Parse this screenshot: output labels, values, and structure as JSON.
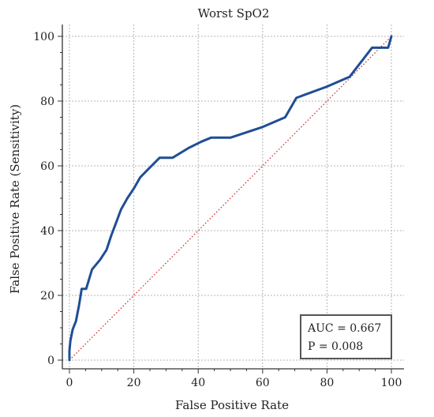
{
  "chart_data": {
    "type": "line",
    "title": "Worst SpO2",
    "xlabel": "False Positive Rate",
    "ylabel": "False Positive Rate (Sensitivity)",
    "xlim": [
      0,
      100
    ],
    "ylim": [
      0,
      100
    ],
    "xticks": [
      0,
      20,
      40,
      60,
      80,
      100
    ],
    "yticks": [
      0,
      20,
      40,
      60,
      80,
      100
    ],
    "grid": true,
    "series": [
      {
        "role": "roc-curve",
        "color": "#1f4e96",
        "points": [
          [
            0,
            0
          ],
          [
            0,
            3
          ],
          [
            0.3,
            6
          ],
          [
            1,
            9.5
          ],
          [
            2,
            12
          ],
          [
            3,
            17
          ],
          [
            3.8,
            22
          ],
          [
            5.2,
            22
          ],
          [
            7,
            28
          ],
          [
            9.5,
            31
          ],
          [
            11.5,
            34
          ],
          [
            13,
            38.5
          ],
          [
            14.5,
            42.5
          ],
          [
            16,
            46.5
          ],
          [
            18,
            50
          ],
          [
            20,
            53
          ],
          [
            22,
            56.5
          ],
          [
            25,
            59.5
          ],
          [
            28,
            62.5
          ],
          [
            32,
            62.5
          ],
          [
            37,
            65.5
          ],
          [
            41,
            67.5
          ],
          [
            44,
            68.7
          ],
          [
            50,
            68.7
          ],
          [
            60,
            72
          ],
          [
            67,
            75
          ],
          [
            70.5,
            81
          ],
          [
            80,
            84.5
          ],
          [
            87,
            87.5
          ],
          [
            94,
            96.5
          ],
          [
            99,
            96.5
          ],
          [
            100,
            100
          ]
        ]
      },
      {
        "role": "reference-diagonal",
        "color": "#c83232",
        "points": [
          [
            0,
            0
          ],
          [
            100,
            100
          ]
        ]
      }
    ],
    "annotation": {
      "lines": [
        "AUC = 0.667",
        "P = 0.008"
      ],
      "position": "bottom-right"
    }
  }
}
